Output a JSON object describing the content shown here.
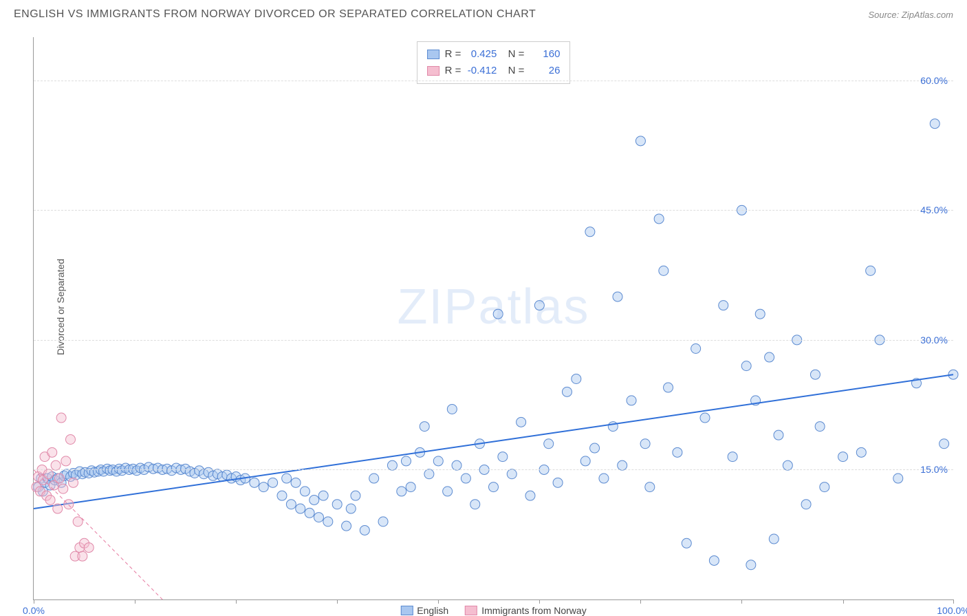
{
  "title": "ENGLISH VS IMMIGRANTS FROM NORWAY DIVORCED OR SEPARATED CORRELATION CHART",
  "source": "Source: ZipAtlas.com",
  "y_axis_label": "Divorced or Separated",
  "watermark": {
    "bold": "ZIP",
    "light": "atlas"
  },
  "chart": {
    "type": "scatter",
    "xlim": [
      0,
      100
    ],
    "ylim": [
      0,
      65
    ],
    "x_ticks": [
      0,
      11,
      22,
      33,
      44,
      55,
      66,
      77,
      88,
      100
    ],
    "x_tick_labels": {
      "0": "0.0%",
      "100": "100.0%"
    },
    "y_gridlines": [
      15,
      30,
      45,
      60
    ],
    "y_tick_labels": {
      "15": "15.0%",
      "30": "30.0%",
      "45": "45.0%",
      "60": "60.0%"
    },
    "background_color": "#ffffff",
    "grid_color": "#dddddd",
    "axis_color": "#999999",
    "marker_radius": 7,
    "marker_opacity": 0.45,
    "series": [
      {
        "name": "English",
        "color_fill": "#a9c7f0",
        "color_stroke": "#5b8ad0",
        "r": 0.425,
        "n": 160,
        "trend": {
          "x1": 0,
          "y1": 10.5,
          "x2": 100,
          "y2": 26,
          "stroke": "#2f6fd8",
          "width": 2,
          "dash": "none"
        },
        "points": [
          [
            0.5,
            13
          ],
          [
            0.8,
            14
          ],
          [
            1,
            12.5
          ],
          [
            1.2,
            13.5
          ],
          [
            1.5,
            14
          ],
          [
            1.8,
            13.2
          ],
          [
            2,
            14.2
          ],
          [
            2.3,
            13.8
          ],
          [
            2.6,
            14
          ],
          [
            3,
            13.5
          ],
          [
            3.3,
            14.3
          ],
          [
            3.6,
            14.5
          ],
          [
            4,
            14.2
          ],
          [
            4.3,
            14.6
          ],
          [
            4.6,
            14.4
          ],
          [
            5,
            14.8
          ],
          [
            5.3,
            14.5
          ],
          [
            5.6,
            14.7
          ],
          [
            6,
            14.6
          ],
          [
            6.3,
            14.9
          ],
          [
            6.6,
            14.7
          ],
          [
            7,
            14.8
          ],
          [
            7.3,
            15
          ],
          [
            7.6,
            14.8
          ],
          [
            8,
            15.1
          ],
          [
            8.3,
            14.9
          ],
          [
            8.6,
            15
          ],
          [
            9,
            14.8
          ],
          [
            9.3,
            15.1
          ],
          [
            9.6,
            14.9
          ],
          [
            10,
            15.2
          ],
          [
            10.4,
            15
          ],
          [
            10.8,
            15.1
          ],
          [
            11.2,
            14.9
          ],
          [
            11.6,
            15.2
          ],
          [
            12,
            15
          ],
          [
            12.5,
            15.3
          ],
          [
            13,
            15.1
          ],
          [
            13.5,
            15.2
          ],
          [
            14,
            15
          ],
          [
            14.5,
            15.1
          ],
          [
            15,
            14.9
          ],
          [
            15.5,
            15.2
          ],
          [
            16,
            15
          ],
          [
            16.5,
            15.1
          ],
          [
            17,
            14.8
          ],
          [
            17.5,
            14.6
          ],
          [
            18,
            14.9
          ],
          [
            18.5,
            14.5
          ],
          [
            19,
            14.7
          ],
          [
            19.5,
            14.3
          ],
          [
            20,
            14.5
          ],
          [
            20.5,
            14.2
          ],
          [
            21,
            14.4
          ],
          [
            21.5,
            14
          ],
          [
            22,
            14.2
          ],
          [
            22.5,
            13.8
          ],
          [
            23,
            14
          ],
          [
            24,
            13.5
          ],
          [
            25,
            13
          ],
          [
            26,
            13.5
          ],
          [
            27,
            12
          ],
          [
            27.5,
            14
          ],
          [
            28,
            11
          ],
          [
            28.5,
            13.5
          ],
          [
            29,
            10.5
          ],
          [
            29.5,
            12.5
          ],
          [
            30,
            10
          ],
          [
            30.5,
            11.5
          ],
          [
            31,
            9.5
          ],
          [
            31.5,
            12
          ],
          [
            32,
            9
          ],
          [
            33,
            11
          ],
          [
            34,
            8.5
          ],
          [
            34.5,
            10.5
          ],
          [
            35,
            12
          ],
          [
            36,
            8
          ],
          [
            37,
            14
          ],
          [
            38,
            9
          ],
          [
            39,
            15.5
          ],
          [
            40,
            12.5
          ],
          [
            40.5,
            16
          ],
          [
            41,
            13
          ],
          [
            42,
            17
          ],
          [
            42.5,
            20
          ],
          [
            43,
            14.5
          ],
          [
            44,
            16
          ],
          [
            45,
            12.5
          ],
          [
            45.5,
            22
          ],
          [
            46,
            15.5
          ],
          [
            47,
            14
          ],
          [
            48,
            11
          ],
          [
            48.5,
            18
          ],
          [
            49,
            15
          ],
          [
            50,
            13
          ],
          [
            50.5,
            33
          ],
          [
            51,
            16.5
          ],
          [
            52,
            14.5
          ],
          [
            53,
            20.5
          ],
          [
            54,
            12
          ],
          [
            55,
            34
          ],
          [
            55.5,
            15
          ],
          [
            56,
            18
          ],
          [
            57,
            13.5
          ],
          [
            58,
            24
          ],
          [
            59,
            25.5
          ],
          [
            60,
            16
          ],
          [
            60.5,
            42.5
          ],
          [
            61,
            17.5
          ],
          [
            62,
            14
          ],
          [
            63,
            20
          ],
          [
            63.5,
            35
          ],
          [
            64,
            15.5
          ],
          [
            65,
            23
          ],
          [
            66,
            53
          ],
          [
            66.5,
            18
          ],
          [
            67,
            13
          ],
          [
            68,
            44
          ],
          [
            68.5,
            38
          ],
          [
            69,
            24.5
          ],
          [
            70,
            17
          ],
          [
            71,
            6.5
          ],
          [
            72,
            29
          ],
          [
            73,
            21
          ],
          [
            74,
            4.5
          ],
          [
            75,
            34
          ],
          [
            76,
            16.5
          ],
          [
            77,
            45
          ],
          [
            77.5,
            27
          ],
          [
            78,
            4
          ],
          [
            78.5,
            23
          ],
          [
            79,
            33
          ],
          [
            80,
            28
          ],
          [
            80.5,
            7
          ],
          [
            81,
            19
          ],
          [
            82,
            15.5
          ],
          [
            83,
            30
          ],
          [
            84,
            11
          ],
          [
            85,
            26
          ],
          [
            85.5,
            20
          ],
          [
            86,
            13
          ],
          [
            88,
            16.5
          ],
          [
            90,
            17
          ],
          [
            91,
            38
          ],
          [
            92,
            30
          ],
          [
            94,
            14
          ],
          [
            96,
            25
          ],
          [
            98,
            55
          ],
          [
            99,
            18
          ],
          [
            100,
            26
          ]
        ]
      },
      {
        "name": "Immigrants from Norway",
        "color_fill": "#f5bed0",
        "color_stroke": "#e088a8",
        "r": -0.412,
        "n": 26,
        "trend": {
          "x1": 0,
          "y1": 15,
          "x2": 14,
          "y2": 0,
          "stroke": "#e67aa0",
          "width": 1,
          "dash": "5,4"
        },
        "points": [
          [
            0.3,
            13
          ],
          [
            0.5,
            14.2
          ],
          [
            0.7,
            12.5
          ],
          [
            0.9,
            15
          ],
          [
            1,
            13.8
          ],
          [
            1.2,
            16.5
          ],
          [
            1.4,
            12
          ],
          [
            1.6,
            14.5
          ],
          [
            1.8,
            11.5
          ],
          [
            2,
            17
          ],
          [
            2.2,
            13.2
          ],
          [
            2.4,
            15.5
          ],
          [
            2.6,
            10.5
          ],
          [
            2.8,
            14
          ],
          [
            3,
            21
          ],
          [
            3.2,
            12.8
          ],
          [
            3.5,
            16
          ],
          [
            3.8,
            11
          ],
          [
            4,
            18.5
          ],
          [
            4.3,
            13.5
          ],
          [
            4.5,
            5
          ],
          [
            4.8,
            9
          ],
          [
            5,
            6
          ],
          [
            5.3,
            5
          ],
          [
            5.5,
            6.5
          ],
          [
            6,
            6
          ]
        ]
      }
    ]
  },
  "legend": {
    "series1_swatch_fill": "#a9c7f0",
    "series1_swatch_stroke": "#5b8ad0",
    "series2_swatch_fill": "#f5bed0",
    "series2_swatch_stroke": "#e088a8"
  }
}
